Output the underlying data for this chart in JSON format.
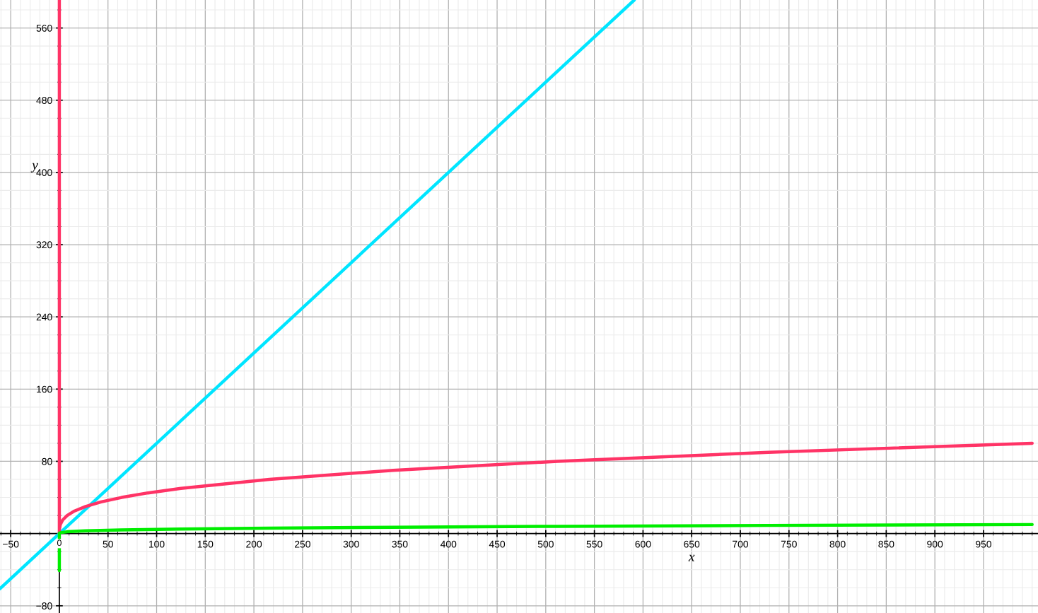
{
  "chart_data": {
    "type": "line",
    "xlabel": "x",
    "ylabel": "y",
    "xlim": [
      -61,
      1006
    ],
    "ylim": [
      -88,
      591
    ],
    "xticks": [
      {
        "value": -50,
        "label": "−50"
      },
      0,
      50,
      100,
      150,
      200,
      250,
      300,
      350,
      400,
      450,
      500,
      550,
      600,
      650,
      700,
      750,
      800,
      850,
      900,
      950
    ],
    "yticks": [
      {
        "value": -80,
        "label": "−80"
      },
      80,
      160,
      240,
      320,
      400,
      480,
      560
    ],
    "grid": true,
    "marker": "none",
    "line_style": "solid",
    "series": [
      {
        "color": "#00e5ff",
        "x": [
          -61,
          591
        ],
        "values": [
          -61,
          591
        ]
      },
      {
        "color": "#ff3366",
        "x": [
          0,
          0,
          0.125,
          1,
          3.4,
          8,
          15.6,
          27,
          42.9,
          64,
          91,
          125,
          216,
          343,
          512,
          729,
          1000
        ],
        "values": [
          591,
          0,
          5,
          10,
          15,
          20,
          25,
          30,
          35,
          40,
          45,
          50,
          60,
          70,
          80,
          90,
          100
        ]
      },
      {
        "color": "#00ee00",
        "x": [
          0,
          0,
          0.125,
          1,
          8,
          27,
          64,
          125,
          216,
          343,
          512,
          729,
          1000
        ],
        "values": [
          -41,
          0,
          0.5,
          1,
          2,
          3,
          4,
          5,
          6,
          7,
          8,
          9,
          10
        ]
      }
    ]
  }
}
